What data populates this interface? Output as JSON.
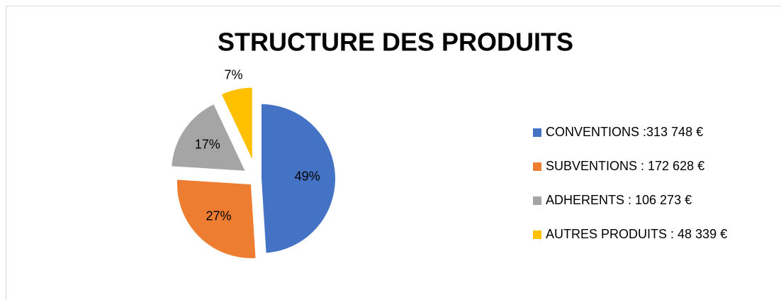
{
  "chart_data": {
    "type": "pie",
    "title": "STRUCTURE  DES  PRODUITS",
    "categories": [
      "CONVENTIONS :313 748 €",
      "SUBVENTIONS : 172 628 €",
      "ADHERENTS : 106 273 €",
      "AUTRES PRODUITS : 48 339 €"
    ],
    "values": [
      49,
      27,
      17,
      7
    ],
    "value_labels": [
      "49%",
      "27%",
      "17%",
      "7%"
    ],
    "colors": [
      "#4472c4",
      "#ed7d31",
      "#a5a5a5",
      "#ffc000"
    ],
    "legend": "right"
  }
}
